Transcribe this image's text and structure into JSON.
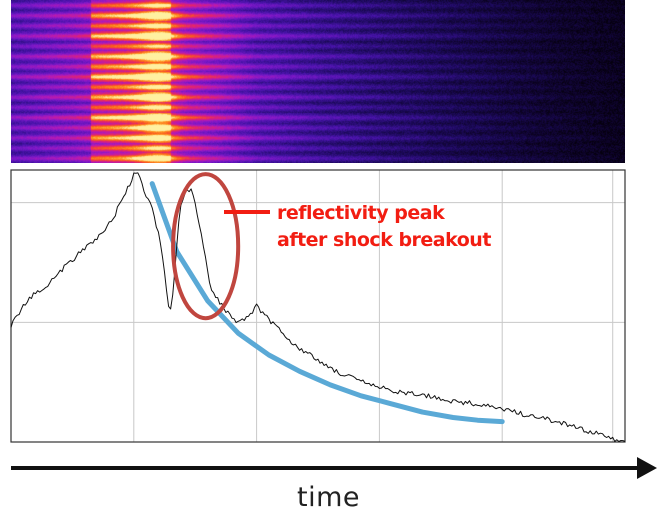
{
  "chart_data": [
    {
      "type": "heatmap",
      "colormap": [
        "#05000e",
        "#1d0a5e",
        "#4613a8",
        "#7a18c8",
        "#b21ab8",
        "#e2236e",
        "#fb5a1e",
        "#fe9a22",
        "#fff0a0"
      ],
      "frequency_bands": 16,
      "band_peak_intensity": [
        0.55,
        0.8,
        0.62,
        0.9,
        0.5,
        0.85,
        0.72,
        0.95,
        0.6,
        0.82,
        0.58,
        0.92,
        0.7,
        0.78,
        0.52,
        0.66
      ],
      "secondary_burst_intensity": [
        0.5,
        0.85,
        0.55,
        0.8,
        0.45,
        0.9,
        0.6,
        0.75,
        0.5,
        0.92,
        0.55,
        0.7,
        0.85,
        0.6,
        0.5,
        0.8
      ],
      "x": [
        0.0,
        0.1,
        0.2,
        0.3,
        0.4,
        0.5,
        0.6,
        0.7,
        0.8,
        0.9,
        1.0
      ],
      "overall_intensity": [
        0.45,
        0.6,
        0.85,
        0.75,
        0.45,
        0.33,
        0.25,
        0.18,
        0.12,
        0.07,
        0.04
      ]
    },
    {
      "type": "line",
      "xlim": [
        0,
        1
      ],
      "ylim": [
        0,
        1
      ],
      "grid": true,
      "x_gridlines": [
        0.2,
        0.4,
        0.6,
        0.8,
        0.98
      ],
      "y_gridlines": [
        0.44,
        0.88
      ],
      "series": [
        {
          "x": [
            0.0,
            0.03,
            0.06,
            0.09,
            0.12,
            0.15,
            0.17,
            0.185,
            0.2,
            0.205,
            0.21,
            0.22,
            0.23,
            0.245,
            0.255,
            0.26,
            0.265,
            0.275,
            0.285,
            0.295,
            0.305,
            0.315,
            0.325,
            0.335,
            0.345,
            0.355,
            0.37,
            0.385,
            0.4,
            0.42,
            0.44,
            0.46,
            0.48,
            0.5,
            0.53,
            0.56,
            0.6,
            0.64,
            0.68,
            0.72,
            0.76,
            0.8,
            0.84,
            0.88,
            0.91,
            0.94,
            0.96,
            0.98,
            1.0
          ],
          "y": [
            0.43,
            0.53,
            0.58,
            0.65,
            0.71,
            0.77,
            0.84,
            0.91,
            0.98,
            0.99,
            0.97,
            0.9,
            0.86,
            0.72,
            0.52,
            0.48,
            0.58,
            0.86,
            0.93,
            0.92,
            0.82,
            0.7,
            0.56,
            0.53,
            0.5,
            0.47,
            0.44,
            0.46,
            0.5,
            0.45,
            0.41,
            0.36,
            0.33,
            0.3,
            0.26,
            0.23,
            0.2,
            0.18,
            0.17,
            0.15,
            0.14,
            0.12,
            0.1,
            0.08,
            0.06,
            0.04,
            0.03,
            0.01,
            0.0
          ]
        },
        {
          "x": [
            0.23,
            0.27,
            0.32,
            0.37,
            0.42,
            0.47,
            0.52,
            0.57,
            0.62,
            0.67,
            0.72,
            0.76,
            0.8
          ],
          "y": [
            0.95,
            0.7,
            0.52,
            0.4,
            0.32,
            0.26,
            0.21,
            0.17,
            0.14,
            0.11,
            0.09,
            0.08,
            0.075
          ]
        }
      ],
      "highlight_ellipse": {
        "x_center": 0.317,
        "y_center": 0.72,
        "x_radius": 0.053,
        "y_radius": 0.265
      }
    }
  ],
  "annotation": {
    "line1": "reflectivity peak",
    "line2": "after shock breakout"
  },
  "axis": {
    "time_label": "time"
  },
  "colors": {
    "raw_curve": "#111111",
    "fit_curve": "#5aa9d6",
    "annotation": "#f21d12",
    "ellipse": "#c0463f",
    "grid": "#c8c8c8",
    "frame": "#333333"
  }
}
